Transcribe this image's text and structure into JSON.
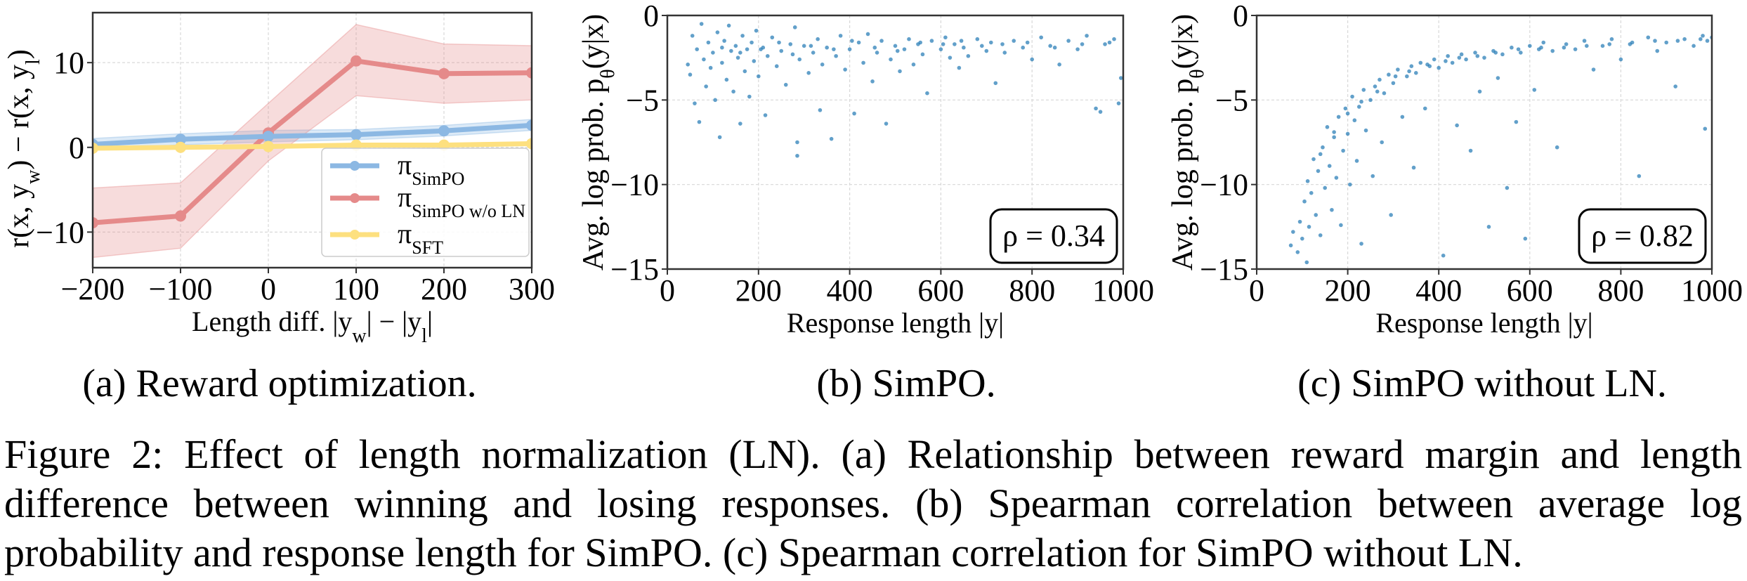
{
  "chart_data": [
    {
      "type": "line",
      "panel": "a",
      "x": [
        -200,
        -100,
        0,
        100,
        200,
        300
      ],
      "xlabel": "Length diff. |y_{w}| − |y_{l}|",
      "ylabel": "r(x, y_{w}) − r(x, y_{l})",
      "xlim": [
        -200,
        300
      ],
      "ylim": [
        -14.2,
        15.9
      ],
      "xticks": [
        -200,
        -100,
        0,
        100,
        200,
        300
      ],
      "xtick_labels": [
        "−200",
        "−100",
        "0",
        "100",
        "200",
        "300"
      ],
      "yticks": [
        -10,
        0,
        10
      ],
      "ytick_labels": [
        "−10",
        "0",
        "10"
      ],
      "grid": true,
      "legend_position": "lower-right",
      "series": [
        {
          "name": "π_{SimPO}",
          "color": "#8cb8e3",
          "values": [
            0.35,
            0.95,
            1.3,
            1.5,
            1.95,
            2.6
          ],
          "lower": [
            -0.35,
            0.3,
            0.65,
            0.9,
            1.35,
            2.0
          ],
          "upper": [
            1.05,
            1.6,
            2.0,
            2.1,
            2.6,
            3.3
          ]
        },
        {
          "name": "π_{SimPO w/o LN}",
          "color": "#e58a8a",
          "values": [
            -8.9,
            -8.1,
            1.7,
            10.2,
            8.7,
            8.8
          ],
          "lower": [
            -13.0,
            -11.9,
            -1.6,
            6.1,
            5.2,
            5.6
          ],
          "upper": [
            -4.8,
            -4.2,
            5.2,
            14.5,
            12.2,
            12.0
          ]
        },
        {
          "name": "π_{SFT}",
          "color": "#fde07f",
          "values": [
            -0.1,
            0.0,
            0.1,
            0.27,
            0.27,
            0.44
          ]
        }
      ]
    },
    {
      "type": "scatter",
      "panel": "b",
      "xlabel": "Response length |y|",
      "ylabel": "Avg. log prob. p_{θ}(y|x)",
      "xlim": [
        0,
        1000
      ],
      "ylim": [
        -15,
        0
      ],
      "xticks": [
        0,
        200,
        400,
        600,
        800,
        1000
      ],
      "xtick_labels": [
        "0",
        "200",
        "400",
        "600",
        "800",
        "1000"
      ],
      "yticks": [
        -15,
        -10,
        -5,
        0
      ],
      "ytick_labels": [
        "−15",
        "−10",
        "−5",
        "0"
      ],
      "grid": true,
      "color": "#1f77b4",
      "annotation": "ρ = 0.34",
      "points": [
        [
          45,
          -2.9
        ],
        [
          50,
          -3.5
        ],
        [
          55,
          -1.2
        ],
        [
          60,
          -5.2
        ],
        [
          65,
          -2.0
        ],
        [
          70,
          -6.3
        ],
        [
          75,
          -0.5
        ],
        [
          80,
          -2.6
        ],
        [
          85,
          -4.2
        ],
        [
          90,
          -1.6
        ],
        [
          95,
          -3.1
        ],
        [
          100,
          -2.2
        ],
        [
          105,
          -5.0
        ],
        [
          110,
          -1.0
        ],
        [
          115,
          -7.2
        ],
        [
          120,
          -2.8
        ],
        [
          125,
          -1.5
        ],
        [
          130,
          -3.8
        ],
        [
          135,
          -0.6
        ],
        [
          140,
          -2.1
        ],
        [
          145,
          -4.5
        ],
        [
          150,
          -1.8
        ],
        [
          155,
          -2.5
        ],
        [
          160,
          -6.4
        ],
        [
          165,
          -1.2
        ],
        [
          170,
          -3.3
        ],
        [
          175,
          -2.0
        ],
        [
          180,
          -4.8
        ],
        [
          185,
          -1.6
        ],
        [
          190,
          -2.7
        ],
        [
          195,
          -0.9
        ],
        [
          200,
          -3.6
        ],
        [
          210,
          -1.9
        ],
        [
          215,
          -5.9
        ],
        [
          220,
          -2.4
        ],
        [
          230,
          -1.3
        ],
        [
          240,
          -3.0
        ],
        [
          250,
          -2.1
        ],
        [
          260,
          -4.1
        ],
        [
          270,
          -1.7
        ],
        [
          280,
          -0.7
        ],
        [
          285,
          -8.3
        ],
        [
          285,
          -7.5
        ],
        [
          290,
          -2.6
        ],
        [
          300,
          -1.8
        ],
        [
          310,
          -3.4
        ],
        [
          320,
          -2.2
        ],
        [
          330,
          -1.4
        ],
        [
          335,
          -5.6
        ],
        [
          340,
          -2.9
        ],
        [
          350,
          -1.9
        ],
        [
          360,
          -7.3
        ],
        [
          370,
          -2.4
        ],
        [
          380,
          -1.2
        ],
        [
          390,
          -3.2
        ],
        [
          400,
          -2.0
        ],
        [
          410,
          -5.8
        ],
        [
          420,
          -1.6
        ],
        [
          430,
          -2.8
        ],
        [
          440,
          -1.1
        ],
        [
          450,
          -3.9
        ],
        [
          460,
          -2.2
        ],
        [
          470,
          -1.5
        ],
        [
          480,
          -6.4
        ],
        [
          490,
          -2.6
        ],
        [
          500,
          -1.8
        ],
        [
          510,
          -3.3
        ],
        [
          520,
          -2.0
        ],
        [
          530,
          -1.4
        ],
        [
          540,
          -2.9
        ],
        [
          550,
          -1.7
        ],
        [
          560,
          -2.3
        ],
        [
          570,
          -4.6
        ],
        [
          580,
          -1.5
        ],
        [
          600,
          -2.0
        ],
        [
          610,
          -1.3
        ],
        [
          620,
          -2.5
        ],
        [
          630,
          -1.7
        ],
        [
          640,
          -3.1
        ],
        [
          650,
          -1.9
        ],
        [
          660,
          -2.4
        ],
        [
          680,
          -1.4
        ],
        [
          700,
          -2.1
        ],
        [
          710,
          -1.6
        ],
        [
          720,
          -4.0
        ],
        [
          740,
          -2.2
        ],
        [
          760,
          -1.5
        ],
        [
          780,
          -1.9
        ],
        [
          800,
          -2.6
        ],
        [
          820,
          -1.3
        ],
        [
          840,
          -1.8
        ],
        [
          860,
          -2.9
        ],
        [
          880,
          -1.5
        ],
        [
          900,
          -2.0
        ],
        [
          920,
          -1.2
        ],
        [
          940,
          -5.5
        ],
        [
          950,
          -5.7
        ],
        [
          960,
          -1.7
        ],
        [
          980,
          -1.4
        ],
        [
          990,
          -5.2
        ],
        [
          995,
          -3.7
        ],
        [
          120,
          -1.9
        ],
        [
          160,
          -2.2
        ],
        [
          205,
          -2.0
        ],
        [
          245,
          -1.6
        ],
        [
          275,
          -2.3
        ],
        [
          315,
          -1.8
        ],
        [
          365,
          -2.0
        ],
        [
          405,
          -1.5
        ],
        [
          455,
          -1.9
        ],
        [
          505,
          -2.1
        ],
        [
          555,
          -1.6
        ],
        [
          605,
          -1.7
        ],
        [
          645,
          -1.5
        ],
        [
          690,
          -1.8
        ],
        [
          735,
          -1.7
        ],
        [
          790,
          -1.6
        ],
        [
          850,
          -1.9
        ],
        [
          910,
          -1.7
        ],
        [
          970,
          -1.6
        ]
      ]
    },
    {
      "type": "scatter",
      "panel": "c",
      "xlabel": "Response length |y|",
      "ylabel": "Avg. log prob. p_{θ}(y|x)",
      "xlim": [
        0,
        1000
      ],
      "ylim": [
        -15,
        0
      ],
      "xticks": [
        0,
        200,
        400,
        600,
        800,
        1000
      ],
      "xtick_labels": [
        "0",
        "200",
        "400",
        "600",
        "800",
        "1000"
      ],
      "yticks": [
        -15,
        -10,
        -5,
        0
      ],
      "ytick_labels": [
        "−15",
        "−10",
        "−5",
        "0"
      ],
      "grid": true,
      "color": "#1f77b4",
      "annotation": "ρ = 0.82",
      "points": [
        [
          75,
          -13.6
        ],
        [
          80,
          -12.8
        ],
        [
          90,
          -14.0
        ],
        [
          95,
          -12.2
        ],
        [
          100,
          -13.2
        ],
        [
          105,
          -11.0
        ],
        [
          110,
          -14.6
        ],
        [
          112,
          -9.8
        ],
        [
          115,
          -12.5
        ],
        [
          120,
          -10.5
        ],
        [
          125,
          -8.5
        ],
        [
          130,
          -11.8
        ],
        [
          135,
          -9.2
        ],
        [
          140,
          -13.0
        ],
        [
          145,
          -7.8
        ],
        [
          150,
          -10.2
        ],
        [
          155,
          -6.6
        ],
        [
          160,
          -8.9
        ],
        [
          165,
          -11.5
        ],
        [
          170,
          -7.2
        ],
        [
          175,
          -9.6
        ],
        [
          180,
          -6.0
        ],
        [
          185,
          -12.4
        ],
        [
          190,
          -8.0
        ],
        [
          195,
          -5.5
        ],
        [
          200,
          -7.0
        ],
        [
          205,
          -10.0
        ],
        [
          210,
          -4.8
        ],
        [
          215,
          -6.2
        ],
        [
          220,
          -8.6
        ],
        [
          225,
          -5.4
        ],
        [
          230,
          -13.5
        ],
        [
          235,
          -4.4
        ],
        [
          240,
          -6.8
        ],
        [
          250,
          -5.0
        ],
        [
          255,
          -9.5
        ],
        [
          260,
          -4.2
        ],
        [
          270,
          -3.8
        ],
        [
          275,
          -7.5
        ],
        [
          280,
          -4.6
        ],
        [
          290,
          -3.5
        ],
        [
          295,
          -11.8
        ],
        [
          300,
          -4.0
        ],
        [
          310,
          -3.2
        ],
        [
          320,
          -6.0
        ],
        [
          330,
          -3.6
        ],
        [
          340,
          -3.0
        ],
        [
          345,
          -9.0
        ],
        [
          350,
          -3.4
        ],
        [
          360,
          -2.8
        ],
        [
          370,
          -5.5
        ],
        [
          380,
          -3.0
        ],
        [
          390,
          -2.6
        ],
        [
          400,
          -3.1
        ],
        [
          410,
          -14.2
        ],
        [
          420,
          -2.4
        ],
        [
          430,
          -2.8
        ],
        [
          440,
          -6.5
        ],
        [
          450,
          -2.3
        ],
        [
          460,
          -2.6
        ],
        [
          470,
          -8.0
        ],
        [
          480,
          -2.2
        ],
        [
          490,
          -4.5
        ],
        [
          500,
          -2.5
        ],
        [
          510,
          -12.5
        ],
        [
          520,
          -2.1
        ],
        [
          530,
          -3.7
        ],
        [
          540,
          -2.3
        ],
        [
          550,
          -10.2
        ],
        [
          560,
          -1.9
        ],
        [
          570,
          -6.3
        ],
        [
          580,
          -2.2
        ],
        [
          590,
          -13.2
        ],
        [
          600,
          -1.8
        ],
        [
          610,
          -4.4
        ],
        [
          620,
          -2.0
        ],
        [
          630,
          -1.6
        ],
        [
          650,
          -2.1
        ],
        [
          660,
          -7.8
        ],
        [
          680,
          -1.7
        ],
        [
          700,
          -2.0
        ],
        [
          720,
          -1.5
        ],
        [
          740,
          -3.2
        ],
        [
          760,
          -1.8
        ],
        [
          780,
          -1.4
        ],
        [
          800,
          -2.6
        ],
        [
          820,
          -1.7
        ],
        [
          840,
          -9.5
        ],
        [
          860,
          -1.3
        ],
        [
          880,
          -2.1
        ],
        [
          900,
          -1.6
        ],
        [
          920,
          -4.2
        ],
        [
          940,
          -1.4
        ],
        [
          960,
          -1.8
        ],
        [
          980,
          -1.2
        ],
        [
          985,
          -6.7
        ],
        [
          990,
          -1.5
        ],
        [
          1000,
          -1.3
        ],
        [
          140,
          -8.2
        ],
        [
          170,
          -6.9
        ],
        [
          200,
          -5.8
        ],
        [
          230,
          -5.1
        ],
        [
          265,
          -4.5
        ],
        [
          305,
          -3.6
        ],
        [
          335,
          -3.3
        ],
        [
          375,
          -2.9
        ],
        [
          415,
          -2.7
        ],
        [
          445,
          -2.5
        ],
        [
          485,
          -2.4
        ],
        [
          525,
          -2.2
        ],
        [
          575,
          -2.0
        ],
        [
          625,
          -1.9
        ],
        [
          675,
          -1.9
        ],
        [
          725,
          -1.8
        ],
        [
          775,
          -1.7
        ],
        [
          825,
          -1.6
        ],
        [
          875,
          -1.5
        ],
        [
          925,
          -1.5
        ],
        [
          975,
          -1.4
        ]
      ]
    }
  ],
  "subcaptions": {
    "a": "(a) Reward optimization.",
    "b": "(b) SimPO.",
    "c": "(c) SimPO without LN."
  },
  "caption": {
    "lines": [
      "Figure 2: Effect of length normalization (LN). (a) Relationship between reward margin and length",
      "difference between winning and losing responses. (b) Spearman correlation between average log",
      "probability and response length for SimPO. (c) Spearman correlation for SimPO without LN."
    ]
  }
}
